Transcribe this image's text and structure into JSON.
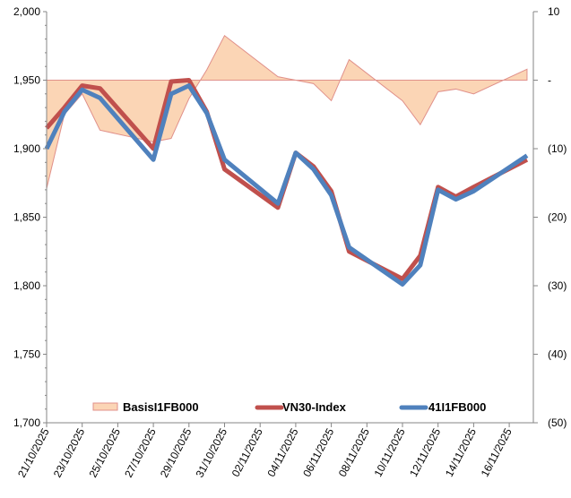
{
  "chart_data": {
    "type": "line",
    "title": "",
    "dates": [
      "21/10/2025",
      "22/10/2025",
      "23/10/2025",
      "24/10/2025",
      "27/10/2025",
      "28/10/2025",
      "29/10/2025",
      "30/10/2025",
      "31/10/2025",
      "03/11/2025",
      "04/11/2025",
      "05/11/2025",
      "06/11/2025",
      "07/11/2025",
      "10/11/2025",
      "11/11/2025",
      "12/11/2025",
      "13/11/2025",
      "14/11/2025",
      "17/11/2025"
    ],
    "x_tick_labels": [
      "21/10/2025",
      "23/10/2025",
      "25/10/2025",
      "27/10/2025",
      "29/10/2025",
      "31/10/2025",
      "02/11/2025",
      "04/11/2025",
      "06/11/2025",
      "08/11/2025",
      "10/11/2025",
      "12/11/2025",
      "14/11/2025",
      "16/11/2025"
    ],
    "left_axis": {
      "min": 1700,
      "max": 2000,
      "ticks": [
        "1,700",
        "1,750",
        "1,800",
        "1,850",
        "1,900",
        "1,950",
        "2,000"
      ]
    },
    "right_axis": {
      "min": -50,
      "max": 10,
      "ticks": [
        "(50)",
        "(40)",
        "(30)",
        "(20)",
        "(10)",
        "-",
        "10"
      ]
    },
    "series": [
      {
        "name": "BasisI1FB000",
        "type": "area",
        "axis": "right",
        "color": "#FBD5B5",
        "stroke": "#E0908A",
        "values": [
          -15.8,
          -5,
          -2,
          -7.3,
          -9,
          -8.5,
          -2.7,
          1.5,
          6.5,
          0.5,
          0,
          -0.5,
          -3,
          3,
          -3,
          -6.5,
          -1.7,
          -1.3,
          -2,
          1.6
        ]
      },
      {
        "name": "VN30-Index",
        "type": "line",
        "axis": "left",
        "color": "#C0504D",
        "values": [
          1915,
          1930,
          1946,
          1944,
          1900,
          1949,
          1950,
          1927,
          1885,
          1857,
          1897,
          1887,
          1869,
          1825,
          1805,
          1822,
          1872,
          1865,
          1872,
          1892
        ]
      },
      {
        "name": "41I1FB000",
        "type": "line",
        "axis": "left",
        "color": "#4F81BD",
        "values": [
          1900,
          1927,
          1943,
          1937,
          1892,
          1940,
          1946,
          1926,
          1892,
          1860,
          1897,
          1885,
          1866,
          1828,
          1801,
          1815,
          1870,
          1863,
          1869,
          1895
        ]
      }
    ],
    "legend_position": "bottom-inside",
    "grid": false
  }
}
